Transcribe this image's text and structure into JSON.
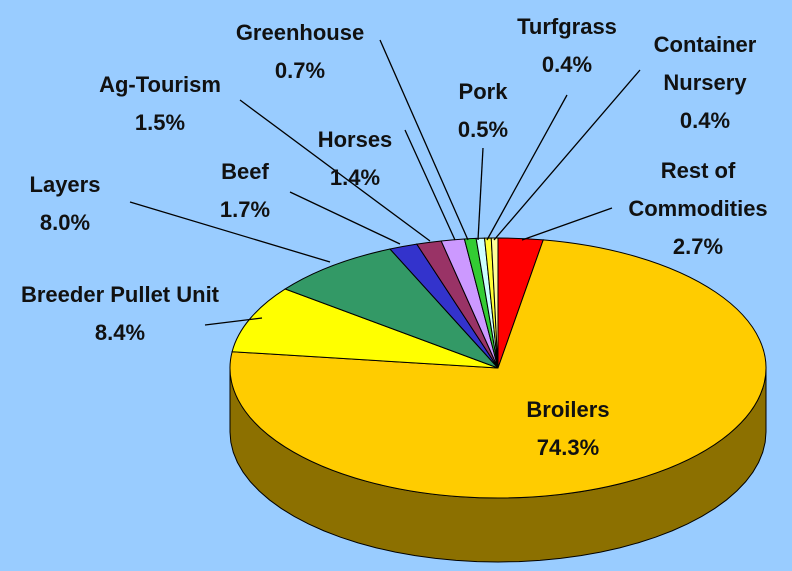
{
  "chart_data": {
    "type": "pie",
    "categories": [
      "Rest of Commodities",
      "Broilers",
      "Breeder Pullet Unit",
      "Layers",
      "Beef",
      "Ag-Tourism",
      "Horses",
      "Greenhouse",
      "Pork",
      "Turfgrass",
      "Container Nursery"
    ],
    "values": [
      2.7,
      74.3,
      8.4,
      8.0,
      1.7,
      1.5,
      1.4,
      0.7,
      0.5,
      0.4,
      0.4
    ],
    "value_labels": [
      "2.7%",
      "74.3%",
      "8.4%",
      "8.0%",
      "1.7%",
      "1.5%",
      "1.4%",
      "0.7%",
      "0.5%",
      "0.4%",
      "0.4%"
    ],
    "colors": [
      "#ff0000",
      "#ffcc00",
      "#ffff00",
      "#339966",
      "#3333cc",
      "#993366",
      "#cc99ff",
      "#33cc33",
      "#ccffff",
      "#ffff33",
      "#ffff99"
    ]
  }
}
